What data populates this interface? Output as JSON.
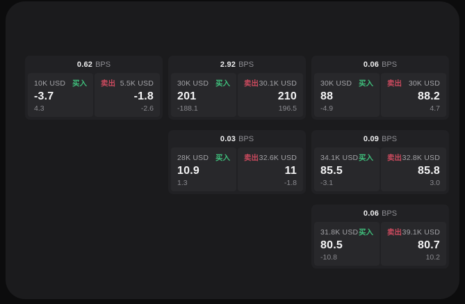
{
  "page": {
    "outer_background": "#0c0c0d",
    "panel_background": "#1b1b1d",
    "card_background": "#212124",
    "tile_background": "#28282b"
  },
  "colors": {
    "buy": "#3fbe7b",
    "sell": "#cb4a5e"
  },
  "labels": {
    "bps_unit": "BPS",
    "buy": "买入",
    "sell": "卖出"
  },
  "cards": [
    {
      "bps": "0.62",
      "row": 1,
      "col": 1,
      "buy": {
        "notional": "10K USD",
        "price": "-3.7",
        "delta": "4.3"
      },
      "sell": {
        "notional": "5.5K USD",
        "price": "-1.8",
        "delta": "-2.6"
      }
    },
    {
      "bps": "2.92",
      "row": 1,
      "col": 2,
      "buy": {
        "notional": "30K USD",
        "price": "201",
        "delta": "-188.1"
      },
      "sell": {
        "notional": "30.1K USD",
        "price": "210",
        "delta": "196.5"
      }
    },
    {
      "bps": "0.06",
      "row": 1,
      "col": 3,
      "buy": {
        "notional": "30K USD",
        "price": "88",
        "delta": "-4.9"
      },
      "sell": {
        "notional": "30K USD",
        "price": "88.2",
        "delta": "4.7"
      }
    },
    {
      "bps": "0.03",
      "row": 2,
      "col": 2,
      "buy": {
        "notional": "28K USD",
        "price": "10.9",
        "delta": "1.3"
      },
      "sell": {
        "notional": "32.6K USD",
        "price": "11",
        "delta": "-1.8"
      }
    },
    {
      "bps": "0.09",
      "row": 2,
      "col": 3,
      "buy": {
        "notional": "34.1K USD",
        "price": "85.5",
        "delta": "-3.1"
      },
      "sell": {
        "notional": "32.8K USD",
        "price": "85.8",
        "delta": "3.0"
      }
    },
    {
      "bps": "0.06",
      "row": 3,
      "col": 3,
      "buy": {
        "notional": "31.8K USD",
        "price": "80.5",
        "delta": "-10.8"
      },
      "sell": {
        "notional": "39.1K USD",
        "price": "80.7",
        "delta": "10.2"
      }
    }
  ]
}
